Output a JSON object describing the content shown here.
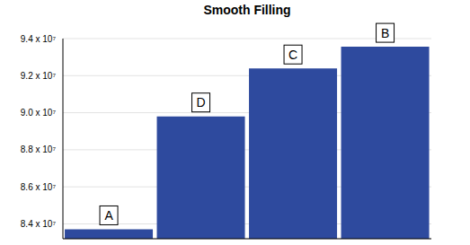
{
  "chart_data": {
    "type": "bar",
    "title": "Smooth Filling",
    "categories": [
      "A",
      "D",
      "C",
      "B"
    ],
    "values": [
      83710000,
      89800000,
      92390000,
      93560000
    ],
    "color": "#2e4a9e",
    "ylim": [
      83200000,
      94000000
    ],
    "yticks": [
      {
        "value": 84000000,
        "label": "8.4 x 10⁷"
      },
      {
        "value": 86000000,
        "label": "8.6 x 10⁷"
      },
      {
        "value": 88000000,
        "label": "8.8 x 10⁷"
      },
      {
        "value": 90000000,
        "label": "9.0 x 10⁷"
      },
      {
        "value": 92000000,
        "label": "9.2 x 10⁷"
      },
      {
        "value": 94000000,
        "label": "9.4 x 10⁷"
      }
    ],
    "grid": true
  }
}
